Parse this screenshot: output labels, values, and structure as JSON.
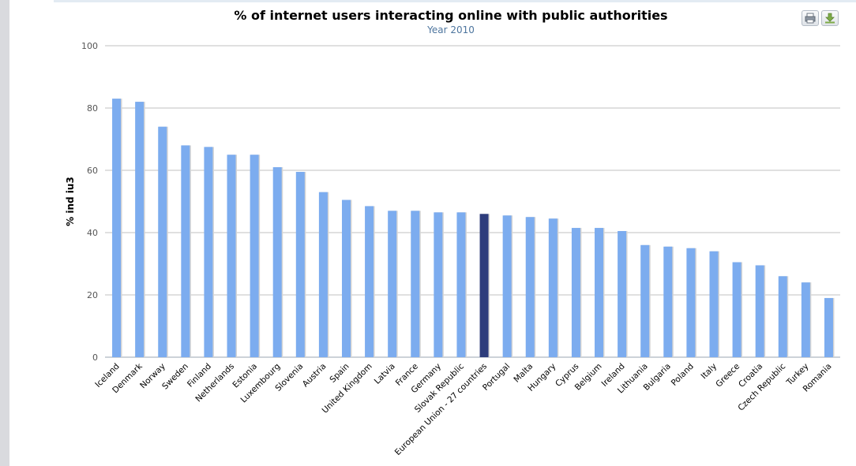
{
  "toolbar": {
    "print_icon": "printer-icon",
    "export_icon": "download-icon"
  },
  "chart_data": {
    "type": "bar",
    "title": "% of internet users interacting online with public authorities",
    "subtitle": "Year 2010",
    "ylabel": "% ind iu3",
    "xlabel": "",
    "ylim": [
      0,
      100
    ],
    "yticks": [
      "0",
      "20",
      "40",
      "60",
      "80",
      "100"
    ],
    "grid": true,
    "legend": "none",
    "bar_color": "#7cacef",
    "highlight_color": "#2e3d7c",
    "highlight_category": "European Union - 27 countries",
    "categories": [
      "Iceland",
      "Denmark",
      "Norway",
      "Sweden",
      "Finland",
      "Netherlands",
      "Estonia",
      "Luxembourg",
      "Slovenia",
      "Austria",
      "Spain",
      "United Kingdom",
      "Latvia",
      "France",
      "Germany",
      "Slovak Republic",
      "European Union - 27 countries",
      "Portugal",
      "Malta",
      "Hungary",
      "Cyprus",
      "Belgium",
      "Ireland",
      "Lithuania",
      "Bulgaria",
      "Poland",
      "Italy",
      "Greece",
      "Croatia",
      "Czech Republic",
      "Turkey",
      "Romania"
    ],
    "values": [
      83,
      82,
      74,
      68,
      67.5,
      65,
      65,
      61,
      59.5,
      53,
      50.5,
      48.5,
      47,
      47,
      46.5,
      46.5,
      46,
      45.5,
      45,
      44.5,
      41.5,
      41.5,
      40.5,
      36,
      35.5,
      35,
      34,
      30.5,
      29.5,
      26,
      24,
      19
    ]
  }
}
